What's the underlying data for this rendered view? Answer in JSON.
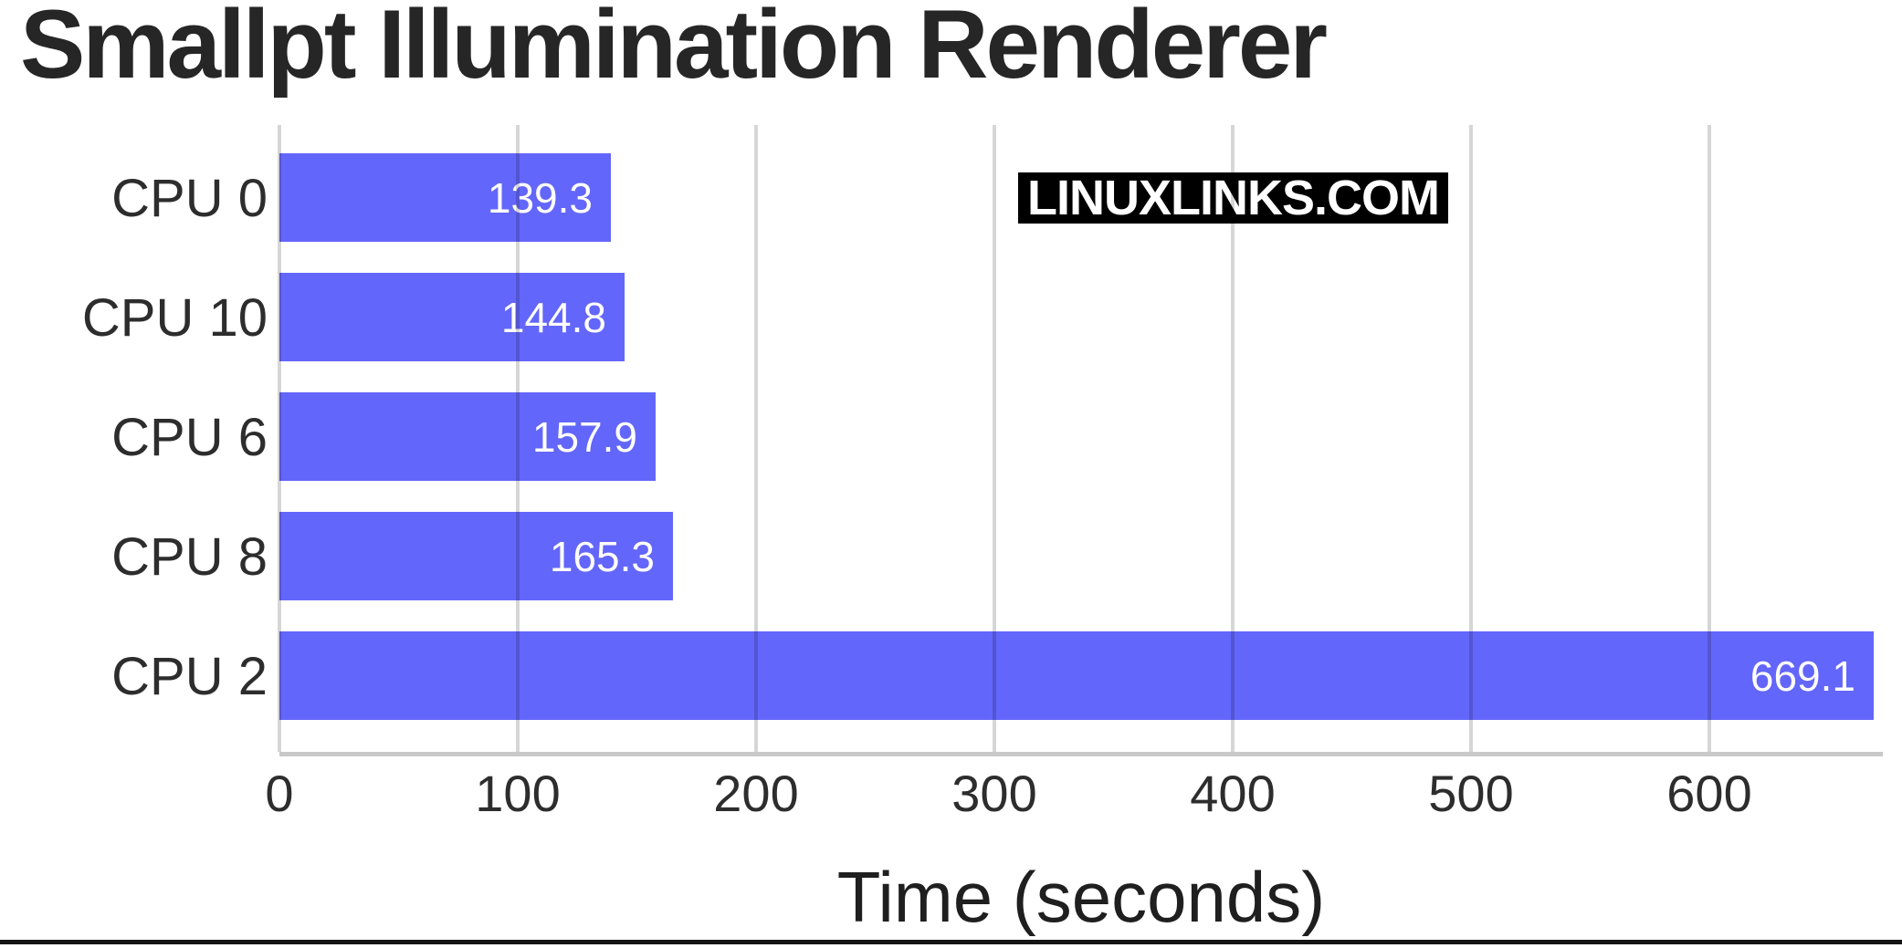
{
  "title": "Smallpt Illumination Renderer",
  "watermark": "LINUXLINKS.COM",
  "chart_data": {
    "type": "bar",
    "orientation": "horizontal",
    "title": "Smallpt Illumination Renderer",
    "categories": [
      "CPU 0",
      "CPU 10",
      "CPU 6",
      "CPU 8",
      "CPU 2"
    ],
    "values": [
      139.3,
      144.8,
      157.9,
      165.3,
      669.1
    ],
    "value_labels": [
      "139.3",
      "144.8",
      "157.9",
      "165.3",
      "669.1"
    ],
    "xlabel": "Time (seconds)",
    "ylabel": "",
    "x_ticks": [
      0,
      100,
      200,
      300,
      400,
      500,
      600
    ],
    "x_tick_labels": [
      "0",
      "100",
      "200",
      "300",
      "400",
      "500",
      "600"
    ],
    "xlim": [
      0,
      673
    ],
    "grid": "vertical-gridlines-over-bars",
    "legend": "none",
    "colors": {
      "bar": "#6366fa",
      "gridline": "rgba(0,0,0,0.16)",
      "axis_line": "#c9c9c9",
      "tick_text": "#2d2d2d",
      "category_text": "#2d2d2d",
      "value_text": "#ffffff",
      "title_text": "#262626",
      "watermark_bg": "#000000",
      "watermark_text": "#ffffff"
    }
  }
}
